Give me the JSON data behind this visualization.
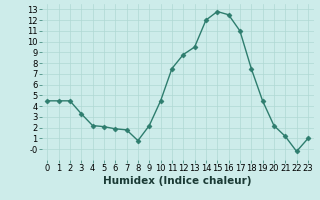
{
  "x": [
    0,
    1,
    2,
    3,
    4,
    5,
    6,
    7,
    8,
    9,
    10,
    11,
    12,
    13,
    14,
    15,
    16,
    17,
    18,
    19,
    20,
    21,
    22,
    23
  ],
  "y": [
    4.5,
    4.5,
    4.5,
    3.3,
    2.2,
    2.1,
    1.9,
    1.8,
    0.8,
    2.2,
    4.5,
    7.5,
    8.8,
    9.5,
    12.0,
    12.8,
    12.5,
    11.0,
    7.5,
    4.5,
    2.2,
    1.2,
    -0.2,
    1.0
  ],
  "xlabel": "Humidex (Indice chaleur)",
  "ylim": [
    -1,
    13.5
  ],
  "xlim": [
    -0.5,
    23.5
  ],
  "line_color": "#2e7d6e",
  "marker": "D",
  "marker_size": 2.5,
  "bg_color": "#cdecea",
  "grid_color": "#b0d8d4",
  "yticks": [
    0,
    1,
    2,
    3,
    4,
    5,
    6,
    7,
    8,
    9,
    10,
    11,
    12,
    13
  ],
  "ytick_labels": [
    "-0",
    "1",
    "2",
    "3",
    "4",
    "5",
    "6",
    "7",
    "8",
    "9",
    "10",
    "11",
    "12",
    "13"
  ],
  "xticks": [
    0,
    1,
    2,
    3,
    4,
    5,
    6,
    7,
    8,
    9,
    10,
    11,
    12,
    13,
    14,
    15,
    16,
    17,
    18,
    19,
    20,
    21,
    22,
    23
  ],
  "tick_label_fontsize": 6,
  "xlabel_fontsize": 7.5,
  "linewidth": 1.0
}
